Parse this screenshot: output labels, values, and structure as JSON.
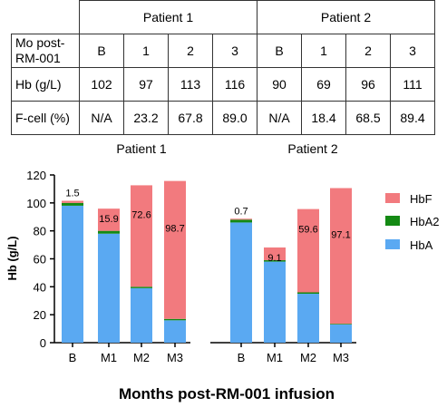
{
  "table": {
    "groups": [
      "Patient 1",
      "Patient 2"
    ],
    "rows": [
      {
        "label": "Mo post-RM-001",
        "label_lines": [
          "Mo post-",
          "RM-001"
        ],
        "cells": [
          "B",
          "1",
          "2",
          "3",
          "B",
          "1",
          "2",
          "3"
        ]
      },
      {
        "label": "Hb (g/L)",
        "cells": [
          "102",
          "97",
          "113",
          "116",
          "90",
          "69",
          "96",
          "111"
        ]
      },
      {
        "label": "F-cell (%)",
        "cells": [
          "N/A",
          "23.2",
          "67.8",
          "89.0",
          "N/A",
          "18.4",
          "68.5",
          "89.4"
        ]
      }
    ]
  },
  "chart_data": {
    "type": "bar",
    "stacked": true,
    "panels": [
      "Patient 1",
      "Patient 2"
    ],
    "categories": [
      "B",
      "M1",
      "M2",
      "M3",
      "B",
      "M1",
      "M2",
      "M3"
    ],
    "series": [
      {
        "name": "HbA",
        "color": "#5aa9f2",
        "values": [
          98,
          78,
          39,
          16,
          86,
          58,
          35,
          13
        ]
      },
      {
        "name": "HbA2",
        "color": "#148a14",
        "values": [
          2,
          2,
          1,
          1,
          2,
          1,
          1,
          0.5
        ]
      },
      {
        "name": "HbF",
        "color": "#f27a7e",
        "values": [
          1.5,
          15.9,
          72.6,
          98.7,
          0.7,
          9.1,
          59.6,
          97.1
        ]
      }
    ],
    "hbf_labels": [
      "1.5",
      "15.9",
      "72.6",
      "98.7",
      "0.7",
      "9.1",
      "59.6",
      "97.1"
    ],
    "ylabel": "Hb (g/L)",
    "xlabel": "Months post-RM-001 infusion",
    "ylim": [
      0,
      120
    ],
    "yticks": [
      0,
      20,
      40,
      60,
      80,
      100,
      120
    ],
    "legend": [
      "HbF",
      "HbA2",
      "HbA"
    ],
    "legend_position": "right",
    "grid": false
  }
}
